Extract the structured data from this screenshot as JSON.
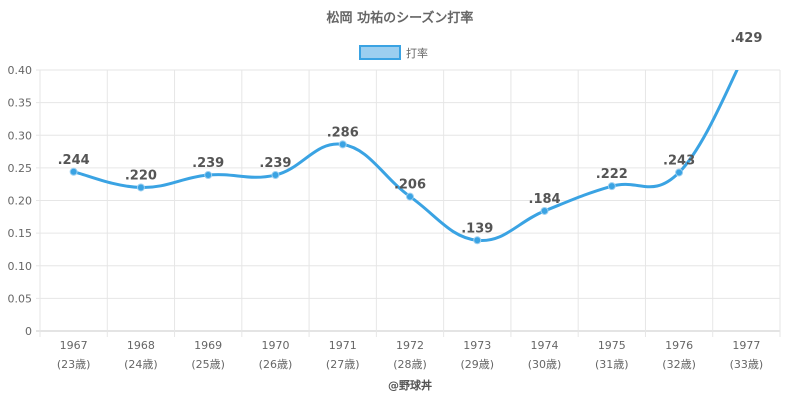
{
  "chart_data": {
    "type": "line",
    "title": "松岡 功祐のシーズン打率",
    "legend": {
      "label": "打率",
      "placement": "top-center"
    },
    "series": [
      {
        "name": "打率",
        "color": "#3aa3e3",
        "fill": "#9ccff0",
        "values": [
          0.244,
          0.22,
          0.239,
          0.239,
          0.286,
          0.206,
          0.139,
          0.184,
          0.222,
          0.243,
          0.429
        ],
        "data_labels": [
          ".244",
          ".220",
          ".239",
          ".239",
          ".286",
          ".206",
          ".139",
          ".184",
          ".222",
          ".243",
          ".429"
        ]
      }
    ],
    "categories": [
      "1967",
      "1968",
      "1969",
      "1970",
      "1971",
      "1972",
      "1973",
      "1974",
      "1975",
      "1976",
      "1977"
    ],
    "category_sublabels": [
      "(23歳)",
      "(24歳)",
      "(25歳)",
      "(26歳)",
      "(27歳)",
      "(28歳)",
      "(29歳)",
      "(30歳)",
      "(31歳)",
      "(32歳)",
      "(33歳)"
    ],
    "ylim": [
      0,
      0.4
    ],
    "yticks": [
      0,
      0.05,
      0.1,
      0.15,
      0.2,
      0.25,
      0.3,
      0.35,
      0.4
    ],
    "ytick_labels": [
      "0",
      "0.05",
      "0.10",
      "0.15",
      "0.20",
      "0.25",
      "0.30",
      "0.35",
      "0.40"
    ],
    "grid": true,
    "credit": "@野球丼",
    "colors": {
      "grid": "#e6e6e6",
      "axis": "#c8c8c8",
      "text": "#666666"
    }
  }
}
